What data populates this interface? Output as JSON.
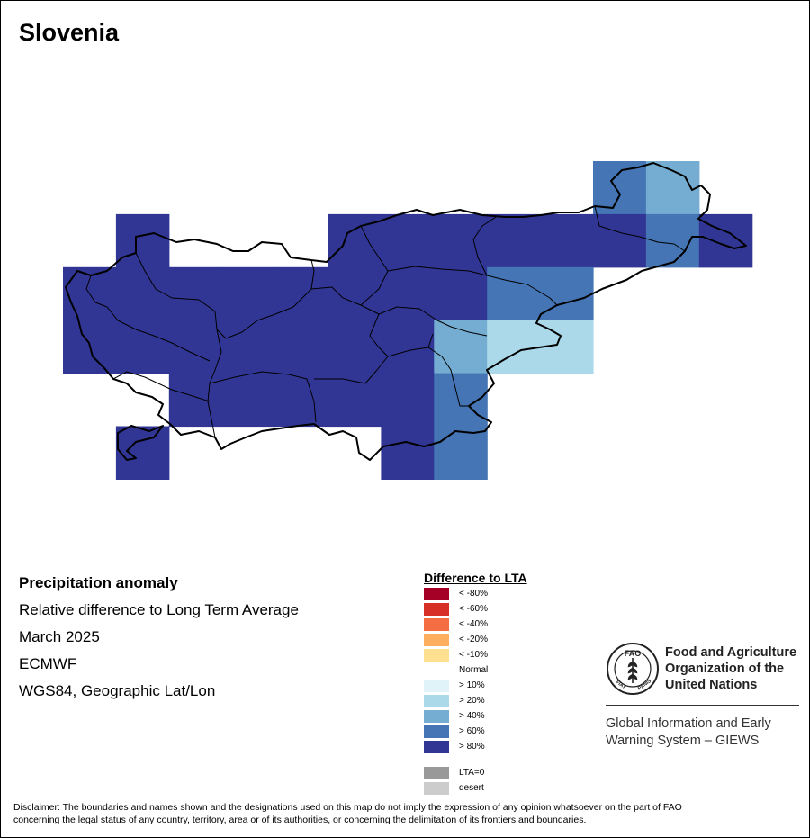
{
  "title": "Slovenia",
  "info": {
    "heading": "Precipitation anomaly",
    "subtitle": "Relative difference to Long Term Average",
    "period": "March 2025",
    "source": "ECMWF",
    "projection": "WGS84, Geographic Lat/Lon"
  },
  "legend": {
    "title": "Difference to LTA",
    "dry": [
      {
        "label": "< -80%",
        "color": "#a50026"
      },
      {
        "label": "< -60%",
        "color": "#d73027"
      },
      {
        "label": "< -40%",
        "color": "#f46d43"
      },
      {
        "label": "< -20%",
        "color": "#fdae61"
      },
      {
        "label": "< -10%",
        "color": "#fee090"
      }
    ],
    "normal": "Normal",
    "wet": [
      {
        "label": "> 10%",
        "color": "#e0f3f8"
      },
      {
        "label": "> 20%",
        "color": "#abd9e9"
      },
      {
        "label": "> 40%",
        "color": "#74add1"
      },
      {
        "label": "> 60%",
        "color": "#4575b4"
      },
      {
        "label": "> 80%",
        "color": "#313695"
      }
    ],
    "extra": [
      {
        "label": "LTA=0",
        "color": "#999999"
      },
      {
        "label": "desert",
        "color": "#cccccc"
      }
    ]
  },
  "org": {
    "fao_line1": "Food and Agriculture",
    "fao_line2": "Organization of the",
    "fao_line3": "United Nations",
    "logo_letters": "FAO",
    "logo_ring_left": "FIAT",
    "logo_ring_right": "PANIS",
    "giews_line1": "Global Information and Early",
    "giews_line2": "Warning System – GIEWS"
  },
  "disclaimer_line1": "Disclaimer: The boundaries and names shown and the designations used on this map do not imply the expression of any opinion whatsoever on the part of FAO",
  "disclaimer_line2": "concerning the legal status of any country, territory, area or of its authorities, or concerning the delimitation of its frontiers and boundaries.",
  "grid_cells": [
    {
      "row": 0,
      "col": 10,
      "class": "> 60%"
    },
    {
      "row": 0,
      "col": 11,
      "class": "> 40%"
    },
    {
      "row": 1,
      "col": 1,
      "class": "> 80%"
    },
    {
      "row": 1,
      "col": 5,
      "class": "> 80%"
    },
    {
      "row": 1,
      "col": 6,
      "class": "> 80%"
    },
    {
      "row": 1,
      "col": 7,
      "class": "> 80%"
    },
    {
      "row": 1,
      "col": 8,
      "class": "> 80%"
    },
    {
      "row": 1,
      "col": 9,
      "class": "> 80%"
    },
    {
      "row": 1,
      "col": 10,
      "class": "> 80%"
    },
    {
      "row": 1,
      "col": 11,
      "class": "> 60%"
    },
    {
      "row": 1,
      "col": 12,
      "class": "> 80%"
    },
    {
      "row": 2,
      "col": 0,
      "class": "> 80%"
    },
    {
      "row": 2,
      "col": 1,
      "class": "> 80%"
    },
    {
      "row": 2,
      "col": 2,
      "class": "> 80%"
    },
    {
      "row": 2,
      "col": 3,
      "class": "> 80%"
    },
    {
      "row": 2,
      "col": 4,
      "class": "> 80%"
    },
    {
      "row": 2,
      "col": 5,
      "class": "> 80%"
    },
    {
      "row": 2,
      "col": 6,
      "class": "> 80%"
    },
    {
      "row": 2,
      "col": 7,
      "class": "> 80%"
    },
    {
      "row": 2,
      "col": 8,
      "class": "> 60%"
    },
    {
      "row": 2,
      "col": 9,
      "class": "> 60%"
    },
    {
      "row": 3,
      "col": 0,
      "class": "> 80%"
    },
    {
      "row": 3,
      "col": 1,
      "class": "> 80%"
    },
    {
      "row": 3,
      "col": 2,
      "class": "> 80%"
    },
    {
      "row": 3,
      "col": 3,
      "class": "> 80%"
    },
    {
      "row": 3,
      "col": 4,
      "class": "> 80%"
    },
    {
      "row": 3,
      "col": 5,
      "class": "> 80%"
    },
    {
      "row": 3,
      "col": 6,
      "class": "> 80%"
    },
    {
      "row": 3,
      "col": 7,
      "class": "> 40%"
    },
    {
      "row": 3,
      "col": 8,
      "class": "> 20%"
    },
    {
      "row": 3,
      "col": 9,
      "class": "> 20%"
    },
    {
      "row": 4,
      "col": 2,
      "class": "> 80%"
    },
    {
      "row": 4,
      "col": 3,
      "class": "> 80%"
    },
    {
      "row": 4,
      "col": 4,
      "class": "> 80%"
    },
    {
      "row": 4,
      "col": 5,
      "class": "> 80%"
    },
    {
      "row": 4,
      "col": 6,
      "class": "> 80%"
    },
    {
      "row": 4,
      "col": 7,
      "class": "> 60%"
    },
    {
      "row": 5,
      "col": 1,
      "class": "> 80%"
    },
    {
      "row": 5,
      "col": 6,
      "class": "> 80%"
    },
    {
      "row": 5,
      "col": 7,
      "class": "> 60%"
    }
  ]
}
